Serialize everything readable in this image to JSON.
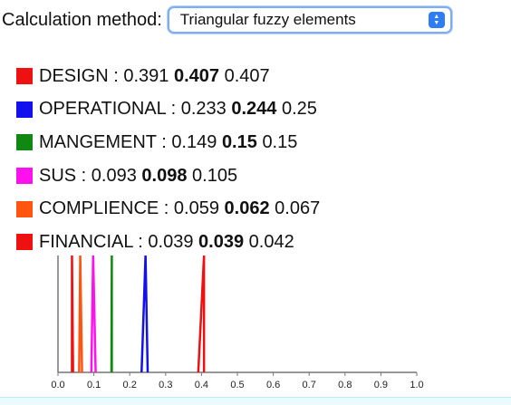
{
  "method": {
    "label": "Calculation method:",
    "selected": "Triangular fuzzy elements"
  },
  "legend": [
    {
      "name": "DESIGN",
      "l": "0.391",
      "m": "0.407",
      "u": "0.407",
      "color": "#ee1111"
    },
    {
      "name": "OPERATIONAL",
      "l": "0.233",
      "m": "0.244",
      "u": "0.25",
      "color": "#1111ee"
    },
    {
      "name": "MANGEMENT",
      "l": "0.149",
      "m": "0.15",
      "u": "0.15",
      "color": "#118811"
    },
    {
      "name": "SUS",
      "l": "0.093",
      "m": "0.098",
      "u": "0.105",
      "color": "#ff11ee"
    },
    {
      "name": "COMPLIENCE",
      "l": "0.059",
      "m": "0.062",
      "u": "0.067",
      "color": "#ff5511"
    },
    {
      "name": "FINANCIAL",
      "l": "0.039",
      "m": "0.039",
      "u": "0.042",
      "color": "#ee1111"
    }
  ],
  "chart_data": {
    "type": "line",
    "xlim": [
      0,
      1
    ],
    "x_ticks": [
      "0.0",
      "0.1",
      "0.2",
      "0.3",
      "0.4",
      "0.5",
      "0.6",
      "0.7",
      "0.8",
      "0.9",
      "1.0"
    ],
    "series": [
      {
        "name": "DESIGN",
        "l": 0.391,
        "m": 0.407,
        "u": 0.407,
        "color": "#ee1111"
      },
      {
        "name": "OPERATIONAL",
        "l": 0.233,
        "m": 0.244,
        "u": 0.25,
        "color": "#1111ee"
      },
      {
        "name": "MANGEMENT",
        "l": 0.149,
        "m": 0.15,
        "u": 0.15,
        "color": "#118811"
      },
      {
        "name": "SUS",
        "l": 0.093,
        "m": 0.098,
        "u": 0.105,
        "color": "#ff11ee"
      },
      {
        "name": "COMPLIENCE",
        "l": 0.059,
        "m": 0.062,
        "u": 0.067,
        "color": "#ff5511"
      },
      {
        "name": "FINANCIAL",
        "l": 0.039,
        "m": 0.039,
        "u": 0.042,
        "color": "#ee1111"
      }
    ]
  }
}
